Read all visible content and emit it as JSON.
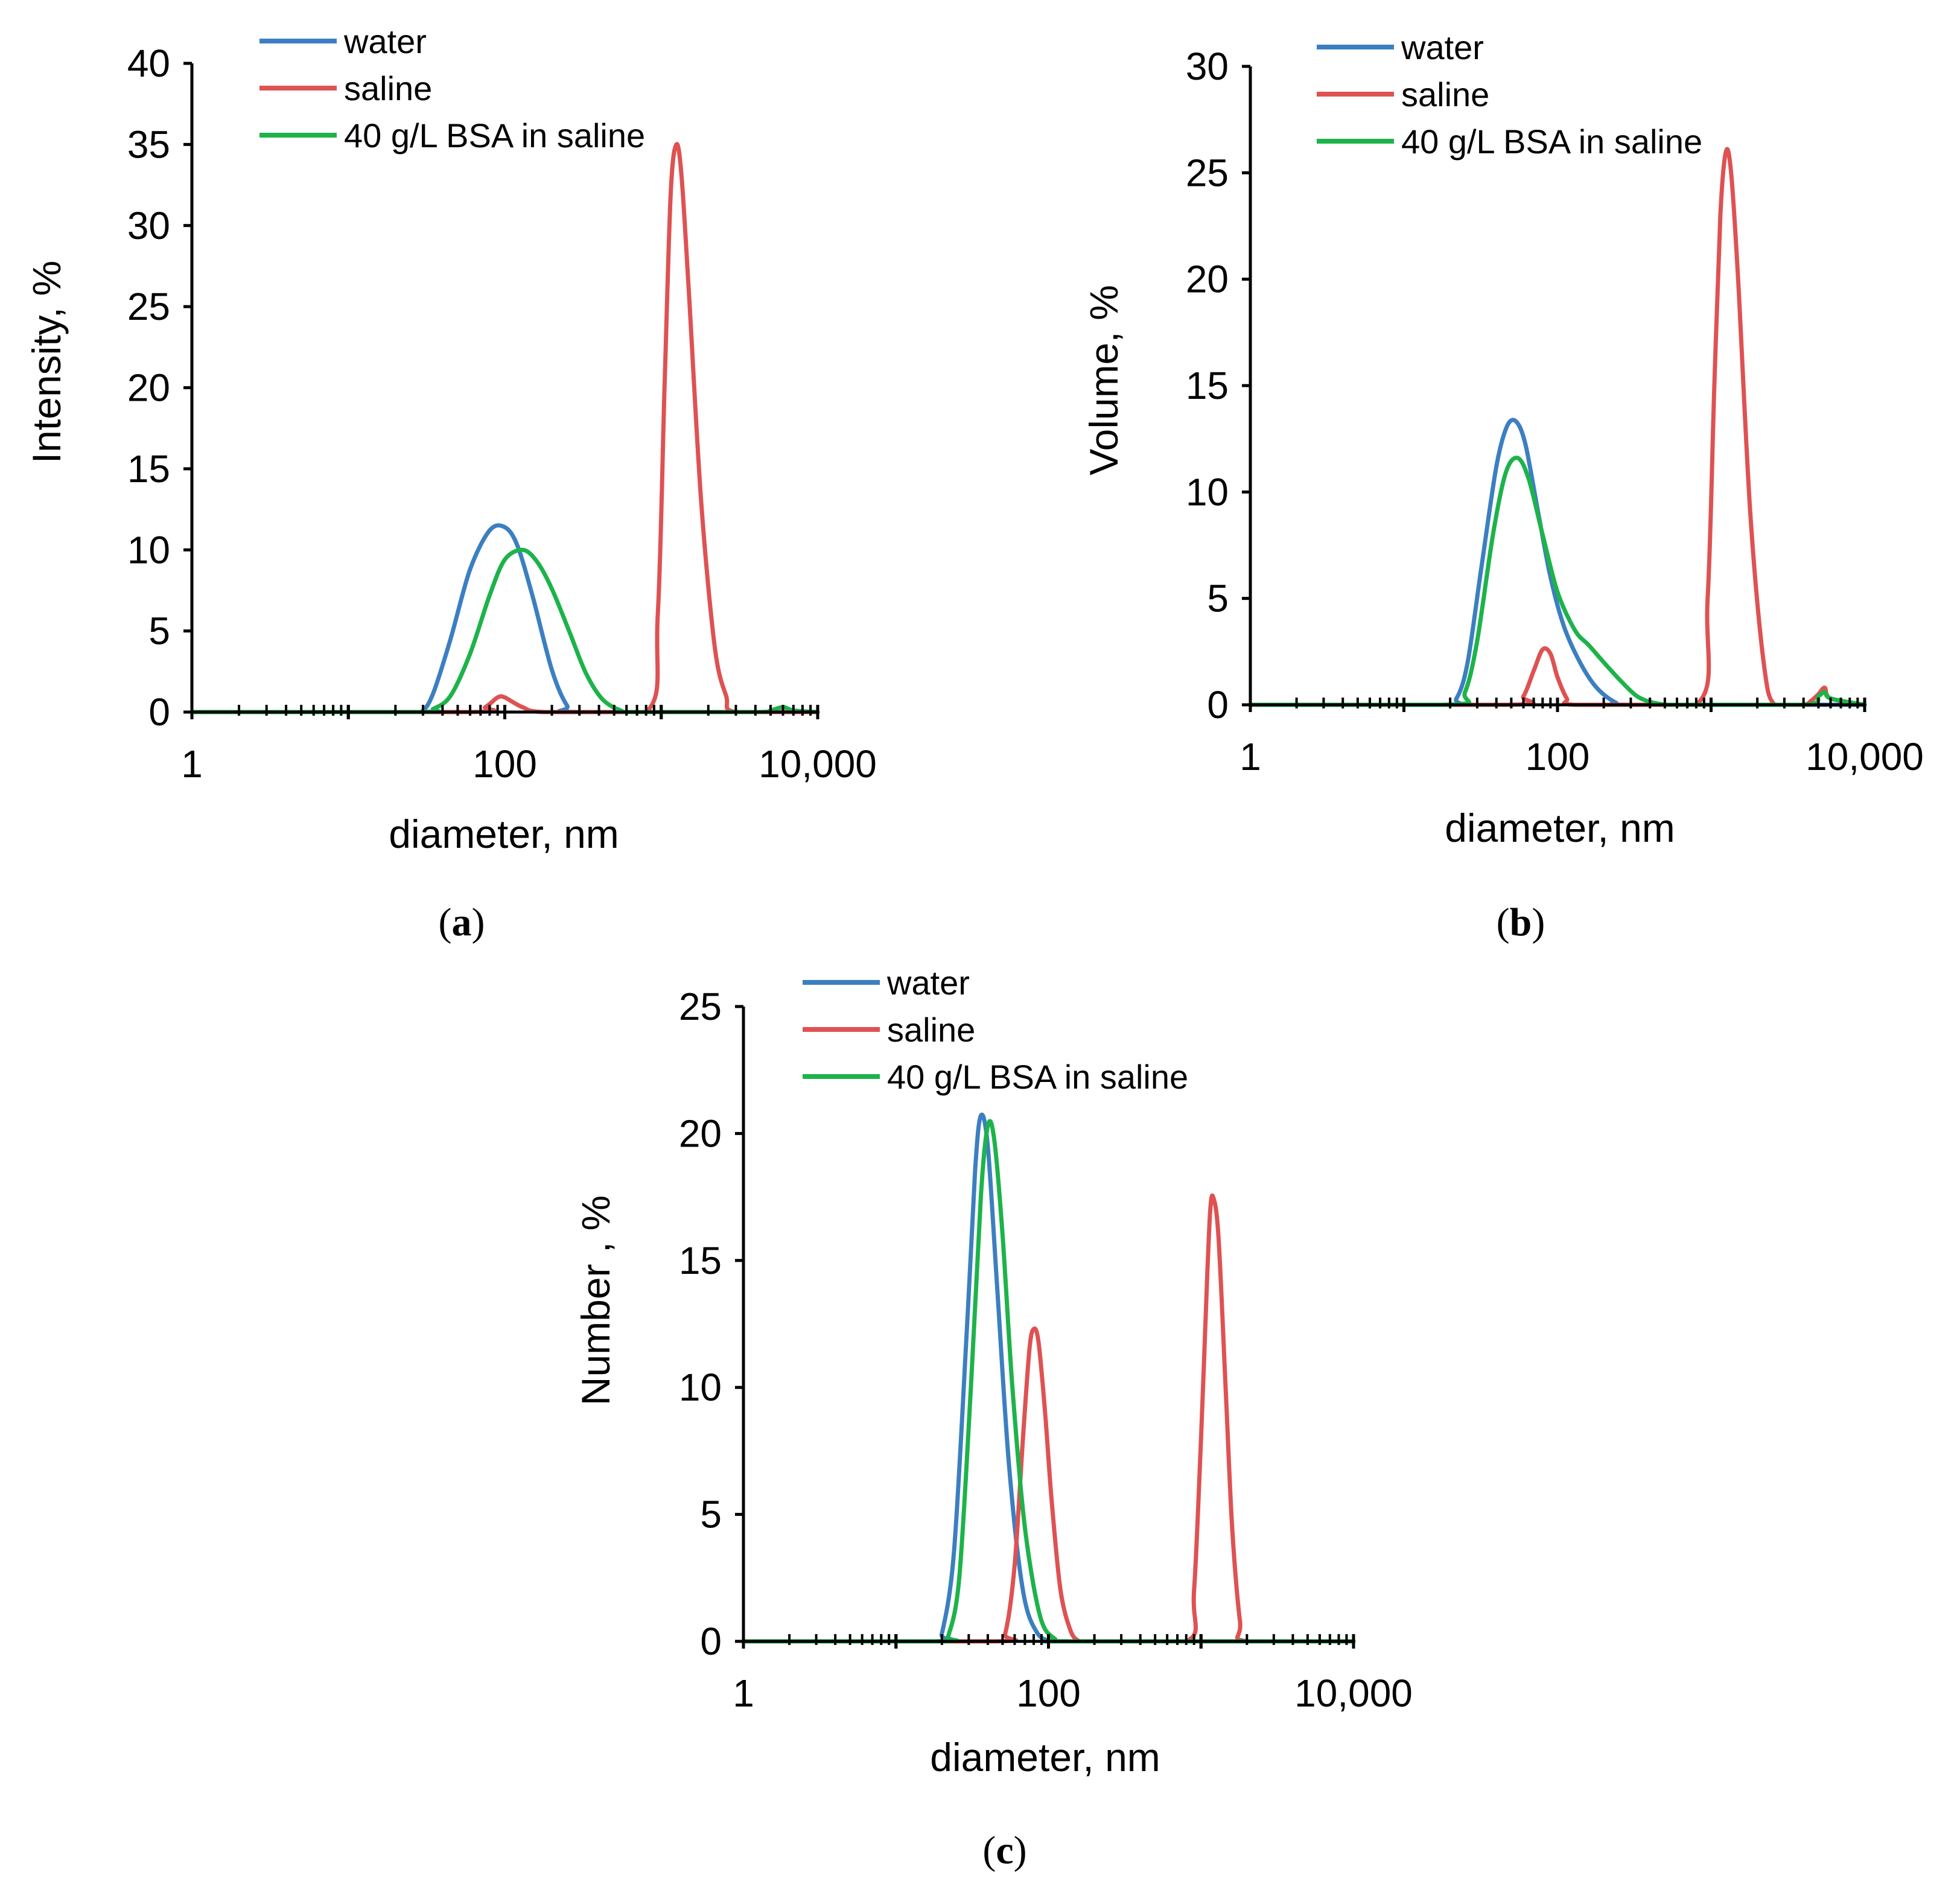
{
  "figure": {
    "colors": {
      "water": "#3c7fc1",
      "saline": "#de5252",
      "bsa": "#1db34a",
      "axis": "#000000"
    }
  },
  "chart_data": [
    {
      "id": "a",
      "type": "line",
      "panel_label": "a",
      "xscale": "log",
      "xlim": [
        1,
        10000
      ],
      "xticks": [
        {
          "value": 1,
          "label": "1"
        },
        {
          "value": 100,
          "label": "100"
        },
        {
          "value": 10000,
          "label": "10,000"
        }
      ],
      "ylim": [
        0,
        40
      ],
      "yticks": [
        0,
        5,
        10,
        15,
        20,
        25,
        30,
        35,
        40
      ],
      "xlabel": "diameter, nm",
      "ylabel": "Intensity, %",
      "legend": [
        "water",
        "saline",
        "40 g/L BSA in saline"
      ],
      "series": [
        {
          "name": "water",
          "color": "#3c7fc1",
          "x": [
            1,
            25,
            30,
            35,
            45,
            60,
            80,
            100,
            120,
            150,
            200,
            250,
            300,
            10000
          ],
          "y": [
            0,
            0,
            0.1,
            1.2,
            4.5,
            8.8,
            11.2,
            11.4,
            10.3,
            7.2,
            2.6,
            0.4,
            0,
            0
          ]
        },
        {
          "name": "saline",
          "color": "#de5252",
          "x": [
            1,
            60,
            75,
            90,
            100,
            130,
            180,
            800,
            950,
            1050,
            1150,
            1250,
            1350,
            1500,
            1800,
            2200,
            2600,
            3000,
            10000
          ],
          "y": [
            0,
            0,
            0.3,
            0.9,
            0.9,
            0.3,
            0,
            0,
            6,
            20,
            32,
            35,
            33,
            26,
            13,
            4,
            1,
            0,
            0
          ]
        },
        {
          "name": "40 g/L BSA in saline",
          "color": "#1db34a",
          "x": [
            1,
            28,
            35,
            45,
            60,
            80,
            100,
            130,
            160,
            200,
            260,
            330,
            420,
            550,
            700,
            4000,
            5000,
            6000,
            7000,
            10000
          ],
          "y": [
            0,
            0,
            0.2,
            1.0,
            3.6,
            7.2,
            9.4,
            10.0,
            9.3,
            7.6,
            4.9,
            2.4,
            0.8,
            0.1,
            0,
            0,
            0.1,
            0.3,
            0.1,
            0
          ]
        }
      ]
    },
    {
      "id": "b",
      "type": "line",
      "panel_label": "b",
      "xscale": "log",
      "xlim": [
        1,
        10000
      ],
      "xticks": [
        {
          "value": 1,
          "label": "1"
        },
        {
          "value": 100,
          "label": "100"
        },
        {
          "value": 10000,
          "label": "10,000"
        }
      ],
      "ylim": [
        0,
        30
      ],
      "yticks": [
        0,
        5,
        10,
        15,
        20,
        25,
        30
      ],
      "xlabel": "diameter, nm",
      "ylabel": "Volume, %",
      "legend": [
        "water",
        "saline",
        "40 g/L BSA in saline"
      ],
      "series": [
        {
          "name": "water",
          "color": "#3c7fc1",
          "x": [
            1,
            18,
            22,
            26,
            32,
            40,
            47,
            54,
            62,
            75,
            90,
            110,
            140,
            180,
            240,
            300,
            10000
          ],
          "y": [
            0,
            0,
            0.3,
            2.0,
            6.5,
            11.2,
            13.1,
            13.3,
            12.2,
            9.0,
            6.0,
            3.7,
            2.0,
            0.8,
            0.1,
            0,
            0
          ]
        },
        {
          "name": "saline",
          "color": "#de5252",
          "x": [
            1,
            50,
            60,
            70,
            80,
            90,
            100,
            115,
            130,
            800,
            950,
            1050,
            1150,
            1250,
            1350,
            1500,
            1800,
            2200,
            2600,
            4000,
            4500,
            5000,
            5500,
            6000,
            10000
          ],
          "y": [
            0,
            0,
            0.4,
            1.6,
            2.6,
            2.4,
            1.3,
            0.3,
            0,
            0,
            5,
            15,
            23,
            26,
            25,
            20,
            9,
            2,
            0,
            0,
            0.2,
            0.5,
            0.8,
            0.3,
            0
          ]
        },
        {
          "name": "40 g/L BSA in saline",
          "color": "#1db34a",
          "x": [
            1,
            20,
            25,
            30,
            38,
            46,
            55,
            65,
            80,
            100,
            130,
            160,
            200,
            260,
            330,
            420,
            520,
            600,
            4000,
            5000,
            5500,
            6000,
            10000
          ],
          "y": [
            0,
            0,
            0.6,
            3.0,
            8.0,
            10.9,
            11.6,
            10.6,
            8.0,
            5.3,
            3.5,
            2.8,
            2.0,
            1.1,
            0.4,
            0.1,
            0,
            0,
            0,
            0.4,
            0.6,
            0.3,
            0
          ]
        }
      ]
    },
    {
      "id": "c",
      "type": "line",
      "panel_label": "c",
      "xscale": "log",
      "xlim": [
        1,
        10000
      ],
      "xticks": [
        {
          "value": 1,
          "label": "1"
        },
        {
          "value": 100,
          "label": "100"
        },
        {
          "value": 10000,
          "label": "10,000"
        }
      ],
      "ylim": [
        0,
        25
      ],
      "yticks": [
        0,
        5,
        10,
        15,
        20,
        25
      ],
      "xlabel": "diameter, nm",
      "ylabel": "Number , %",
      "legend": [
        "water",
        "saline",
        "40 g/L BSA in saline"
      ],
      "series": [
        {
          "name": "water",
          "color": "#3c7fc1",
          "x": [
            1,
            18,
            20,
            24,
            29,
            33,
            36,
            40,
            46,
            55,
            68,
            85,
            110,
            130,
            10000
          ],
          "y": [
            0,
            0,
            0.3,
            3.5,
            12.0,
            18.5,
            20.7,
            19.5,
            14.0,
            7.0,
            2.0,
            0.3,
            0,
            0,
            0
          ]
        },
        {
          "name": "saline",
          "color": "#de5252",
          "x": [
            1,
            45,
            52,
            60,
            68,
            75,
            80,
            86,
            95,
            105,
            120,
            140,
            160,
            180,
            800,
            900,
            1000,
            1100,
            1150,
            1200,
            1300,
            1450,
            1600,
            1800,
            2000,
            10000
          ],
          "y": [
            0,
            0,
            0.3,
            3.0,
            8.0,
            11.5,
            12.3,
            11.8,
            9.0,
            5.5,
            2.0,
            0.4,
            0,
            0,
            0,
            2,
            8,
            14.5,
            17,
            17.5,
            16,
            10,
            4.5,
            0.8,
            0,
            0
          ]
        },
        {
          "name": "40 g/L BSA in saline",
          "color": "#1db34a",
          "x": [
            1,
            20,
            22,
            26,
            31,
            36,
            40,
            44,
            50,
            58,
            70,
            88,
            110,
            140,
            10000
          ],
          "y": [
            0,
            0,
            0.2,
            2.5,
            10.0,
            17.5,
            20.3,
            19.8,
            16.0,
            10.0,
            4.5,
            1.0,
            0.1,
            0,
            0
          ]
        }
      ]
    }
  ]
}
